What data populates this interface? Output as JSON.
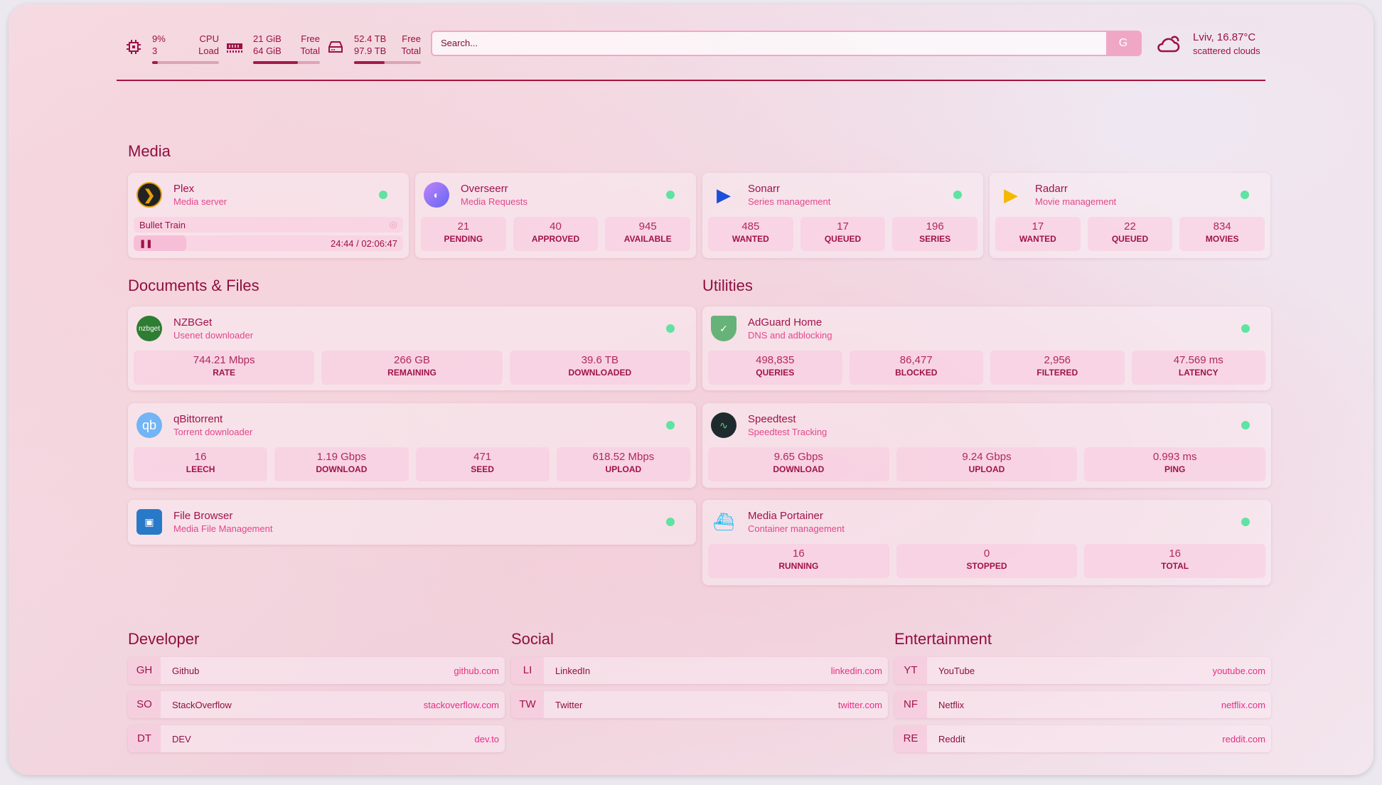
{
  "resources": {
    "cpu": {
      "icon": "cpu-icon",
      "value": "9%",
      "sub": "3",
      "label1": "CPU",
      "label2": "Load",
      "fill": 9
    },
    "memory": {
      "icon": "memory-icon",
      "value": "21 GiB",
      "sub": "64 GiB",
      "label1": "Free",
      "label2": "Total",
      "fill": 67
    },
    "disk": {
      "icon": "disk-icon",
      "value": "52.4 TB",
      "sub": "97.9 TB",
      "label1": "Free",
      "label2": "Total",
      "fill": 46
    }
  },
  "search": {
    "placeholder": "Search...",
    "provider": "G"
  },
  "weather": {
    "icon": "cloud-icon",
    "location_temp": "Lviv, 16.87°C",
    "condition": "scattered clouds"
  },
  "colors": {
    "accent": "#a0124a",
    "subtitle": "#e3468c",
    "status_ok": "#5fe3a1"
  },
  "groups": [
    {
      "title": "Media"
    },
    {
      "title": "Documents & Files"
    },
    {
      "title": "Utilities"
    }
  ],
  "media": [
    {
      "name": "Plex",
      "desc": "Media server",
      "icon": "plex-icon",
      "now_playing": {
        "title": "Bullet Train",
        "position": "24:44",
        "duration": "02:06:47",
        "progress": 19.5
      }
    },
    {
      "name": "Overseerr",
      "desc": "Media Requests",
      "icon": "overseerr-icon",
      "stats": [
        {
          "v": "21",
          "l": "PENDING"
        },
        {
          "v": "40",
          "l": "APPROVED"
        },
        {
          "v": "945",
          "l": "AVAILABLE"
        }
      ]
    },
    {
      "name": "Sonarr",
      "desc": "Series management",
      "icon": "sonarr-icon",
      "stats": [
        {
          "v": "485",
          "l": "WANTED"
        },
        {
          "v": "17",
          "l": "QUEUED"
        },
        {
          "v": "196",
          "l": "SERIES"
        }
      ]
    },
    {
      "name": "Radarr",
      "desc": "Movie management",
      "icon": "radarr-icon",
      "stats": [
        {
          "v": "17",
          "l": "WANTED"
        },
        {
          "v": "22",
          "l": "QUEUED"
        },
        {
          "v": "834",
          "l": "MOVIES"
        }
      ]
    }
  ],
  "docs": [
    {
      "name": "NZBGet",
      "desc": "Usenet downloader",
      "icon": "nzbget-icon",
      "icon_text": "nzbget",
      "stats": [
        {
          "v": "744.21 Mbps",
          "l": "RATE"
        },
        {
          "v": "266 GB",
          "l": "REMAINING"
        },
        {
          "v": "39.6 TB",
          "l": "DOWNLOADED"
        }
      ]
    },
    {
      "name": "qBittorrent",
      "desc": "Torrent downloader",
      "icon": "qbittorrent-icon",
      "icon_text": "qb",
      "stats": [
        {
          "v": "16",
          "l": "LEECH"
        },
        {
          "v": "1.19 Gbps",
          "l": "DOWNLOAD"
        },
        {
          "v": "471",
          "l": "SEED"
        },
        {
          "v": "618.52 Mbps",
          "l": "UPLOAD"
        }
      ]
    },
    {
      "name": "File Browser",
      "desc": "Media File Management",
      "icon": "filebrowser-icon",
      "stats": []
    }
  ],
  "utilities": [
    {
      "name": "AdGuard Home",
      "desc": "DNS and adblocking",
      "icon": "adguard-icon",
      "stats": [
        {
          "v": "498,835",
          "l": "QUERIES"
        },
        {
          "v": "86,477",
          "l": "BLOCKED"
        },
        {
          "v": "2,956",
          "l": "FILTERED"
        },
        {
          "v": "47.569 ms",
          "l": "LATENCY"
        }
      ]
    },
    {
      "name": "Speedtest",
      "desc": "Speedtest Tracking",
      "icon": "speedtest-icon",
      "stats": [
        {
          "v": "9.65 Gbps",
          "l": "DOWNLOAD"
        },
        {
          "v": "9.24 Gbps",
          "l": "UPLOAD"
        },
        {
          "v": "0.993 ms",
          "l": "PING"
        }
      ]
    },
    {
      "name": "Media Portainer",
      "desc": "Container management",
      "icon": "portainer-icon",
      "stats": [
        {
          "v": "16",
          "l": "RUNNING"
        },
        {
          "v": "0",
          "l": "STOPPED"
        },
        {
          "v": "16",
          "l": "TOTAL"
        }
      ]
    }
  ],
  "bookmarks": [
    {
      "title": "Developer",
      "items": [
        {
          "abbr": "GH",
          "name": "Github",
          "url": "github.com"
        },
        {
          "abbr": "SO",
          "name": "StackOverflow",
          "url": "stackoverflow.com"
        },
        {
          "abbr": "DT",
          "name": "DEV",
          "url": "dev.to"
        }
      ]
    },
    {
      "title": "Social",
      "items": [
        {
          "abbr": "LI",
          "name": "LinkedIn",
          "url": "linkedin.com"
        },
        {
          "abbr": "TW",
          "name": "Twitter",
          "url": "twitter.com"
        }
      ]
    },
    {
      "title": "Entertainment",
      "items": [
        {
          "abbr": "YT",
          "name": "YouTube",
          "url": "youtube.com"
        },
        {
          "abbr": "NF",
          "name": "Netflix",
          "url": "netflix.com"
        },
        {
          "abbr": "RE",
          "name": "Reddit",
          "url": "reddit.com"
        }
      ]
    }
  ]
}
